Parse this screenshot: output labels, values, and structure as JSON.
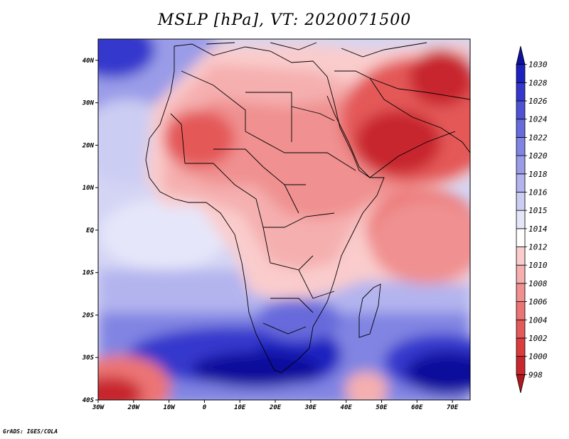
{
  "title": "MSLP [hPa], VT: 2020071500",
  "credit": "GrADS: IGES/COLA",
  "map": {
    "lon_labels": [
      "30W",
      "20W",
      "10W",
      "0",
      "10E",
      "20E",
      "30E",
      "40E",
      "50E",
      "60E",
      "70E"
    ],
    "lat_labels": [
      "40N",
      "30N",
      "20N",
      "10N",
      "EQ",
      "10S",
      "20S",
      "30S",
      "40S"
    ],
    "lon_range": [
      -30,
      75
    ],
    "lat_range": [
      -40,
      45
    ]
  },
  "colorbar": {
    "levels": [
      "998",
      "1000",
      "1002",
      "1004",
      "1006",
      "1008",
      "1010",
      "1012",
      "1014",
      "1015",
      "1016",
      "1018",
      "1020",
      "1022",
      "1024",
      "1026",
      "1028",
      "1030"
    ],
    "colors": [
      "#b2171d",
      "#c8282d",
      "#dc3c3c",
      "#e45959",
      "#ec7474",
      "#f09090",
      "#f5afaf",
      "#facccc",
      "#ffffff",
      "#e6e6fa",
      "#cccdf3",
      "#b3b4ee",
      "#9a9ce8",
      "#8184e2",
      "#686bdb",
      "#4f52d4",
      "#3437cc",
      "#1c20bf",
      "#0d119c"
    ]
  }
}
